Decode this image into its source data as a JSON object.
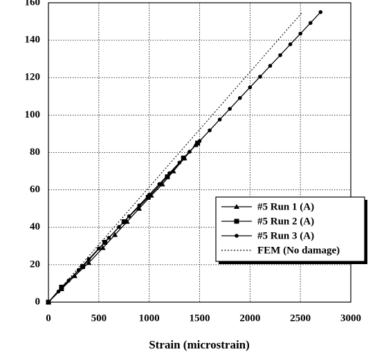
{
  "chart_data": {
    "type": "line",
    "xlabel": "Strain (microstrain)",
    "xlim": [
      0,
      3000
    ],
    "xticks": [
      0,
      500,
      1000,
      1500,
      2000,
      2500,
      3000
    ],
    "ylim": [
      0,
      160
    ],
    "yticks": [
      0,
      20,
      40,
      60,
      80,
      100,
      120,
      140,
      160
    ],
    "grid": true,
    "legend": "lower right",
    "series": [
      {
        "name": "#5 Run 1 (A)",
        "color": "#000000",
        "marker": "triangle",
        "linestyle": "solid",
        "x": [
          0,
          130,
          260,
          400,
          540,
          660,
          780,
          900,
          1020,
          1130,
          1240,
          1350,
          1460
        ],
        "values": [
          0,
          7,
          14,
          21,
          29,
          36,
          43,
          50,
          57,
          63,
          70,
          77,
          84
        ]
      },
      {
        "name": "#5 Run 2 (A)",
        "color": "#000000",
        "marker": "square",
        "linestyle": "solid",
        "x": [
          0,
          130,
          340,
          560,
          750,
          990,
          1180,
          1340,
          1480
        ],
        "values": [
          0,
          8,
          19,
          32,
          43,
          56,
          67,
          77,
          85
        ]
      },
      {
        "name": "#5 Run 3 (A)",
        "color": "#000000",
        "marker": "circle",
        "linestyle": "solid",
        "x": [
          0,
          100,
          200,
          300,
          400,
          500,
          600,
          700,
          800,
          900,
          1000,
          1100,
          1200,
          1300,
          1400,
          1500,
          1600,
          1700,
          1800,
          1900,
          2000,
          2100,
          2200,
          2300,
          2400,
          2500,
          2600,
          2700
        ],
        "values": [
          0,
          5.7,
          11.5,
          17.2,
          23,
          28.7,
          34.4,
          40.2,
          45.9,
          51.7,
          57.4,
          63.1,
          68.9,
          74.6,
          80.4,
          86.1,
          91.8,
          97.6,
          103.3,
          109.1,
          114.8,
          120.5,
          126.3,
          132,
          137.8,
          143.5,
          149.2,
          155
        ]
      },
      {
        "name": "FEM (No damage)",
        "color": "#000000",
        "marker": "none",
        "linestyle": "dotted",
        "x": [
          0,
          2520
        ],
        "values": [
          0,
          155
        ]
      }
    ]
  }
}
